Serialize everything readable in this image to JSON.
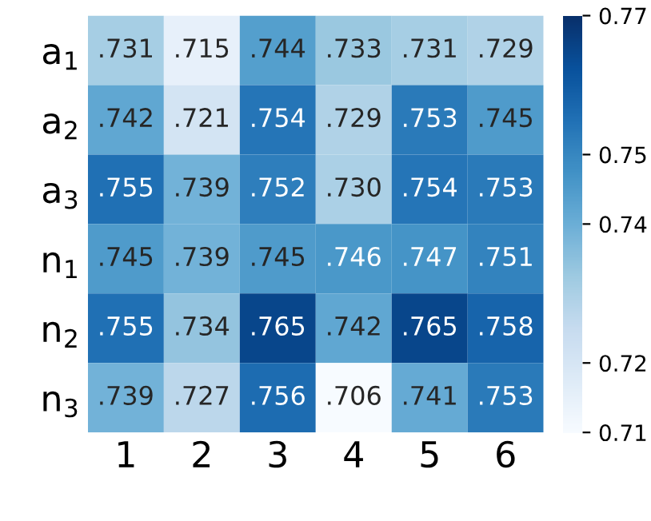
{
  "chart_data": {
    "type": "heatmap",
    "categories": [
      "1",
      "2",
      "3",
      "4",
      "5",
      "6"
    ],
    "y_categories": [
      "a$_{1}$",
      "a$_{2}$",
      "a$_{3}$",
      "n$_{1}$",
      "n$_{2}$",
      "n$_{3}$"
    ],
    "cells": [
      [
        0.731,
        0.715,
        0.744,
        0.733,
        0.731,
        0.729
      ],
      [
        0.742,
        0.721,
        0.754,
        0.729,
        0.753,
        0.745
      ],
      [
        0.755,
        0.739,
        0.752,
        0.73,
        0.754,
        0.753
      ],
      [
        0.745,
        0.739,
        0.745,
        0.746,
        0.747,
        0.751
      ],
      [
        0.755,
        0.734,
        0.765,
        0.742,
        0.765,
        0.758
      ],
      [
        0.739,
        0.727,
        0.756,
        0.706,
        0.741,
        0.753
      ]
    ],
    "cell_labels": [
      [
        ".731",
        ".715",
        ".744",
        ".733",
        ".731",
        ".729"
      ],
      [
        ".742",
        ".721",
        ".754",
        ".729",
        ".753",
        ".745"
      ],
      [
        ".755",
        ".739",
        ".752",
        ".730",
        ".754",
        ".753"
      ],
      [
        ".745",
        ".739",
        ".745",
        ".746",
        ".747",
        ".751"
      ],
      [
        ".755",
        ".734",
        ".765",
        ".742",
        ".765",
        ".758"
      ],
      [
        ".739",
        ".727",
        ".756",
        ".706",
        ".741",
        ".753"
      ]
    ],
    "clim": [
      0.71,
      0.77
    ],
    "cticks": [
      0.71,
      0.72,
      0.74,
      0.75,
      0.77
    ]
  }
}
